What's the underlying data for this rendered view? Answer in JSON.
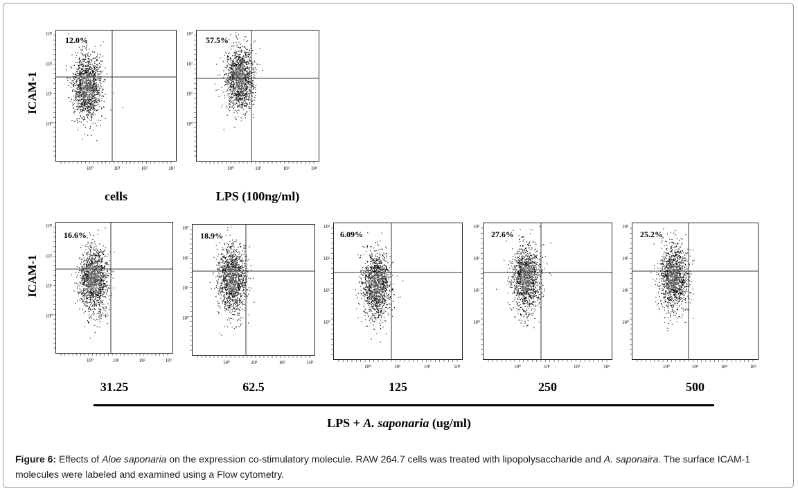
{
  "figure": {
    "y_axis_label": "ICAM-1",
    "group_label": {
      "prefix": "LPS + ",
      "species": "A. saponaria",
      "suffix": " (ug/ml)"
    },
    "panels": [
      {
        "id": "p1",
        "percent": "12.0%",
        "condition": "cells"
      },
      {
        "id": "p2",
        "percent": "57.5%",
        "condition": "LPS (100ng/ml)"
      },
      {
        "id": "p3",
        "percent": "16.6%",
        "condition": "31.25"
      },
      {
        "id": "p4",
        "percent": "18.9%",
        "condition": "62.5"
      },
      {
        "id": "p5",
        "percent": "6.09%",
        "condition": "125"
      },
      {
        "id": "p6",
        "percent": "27.6%",
        "condition": "250"
      },
      {
        "id": "p7",
        "percent": "25.2%",
        "condition": "500"
      }
    ],
    "tick_labels": {
      "x": [
        "10⁰",
        "10¹",
        "10²",
        "10³"
      ],
      "y": [
        "10⁰",
        "10¹",
        "10²",
        "10³"
      ]
    }
  },
  "caption": {
    "label": "Figure 6:",
    "t1": " Effects of ",
    "i1": "Aloe saponaria",
    "t2": " on the expression co-stimulatory molecule. RAW 264.7 cells was treated with lipopolysaccharide and ",
    "i2": "A. saponaira",
    "t3": ". The surface ICAM-1 molecules were labeled and examined using a Flow cytometry."
  }
}
